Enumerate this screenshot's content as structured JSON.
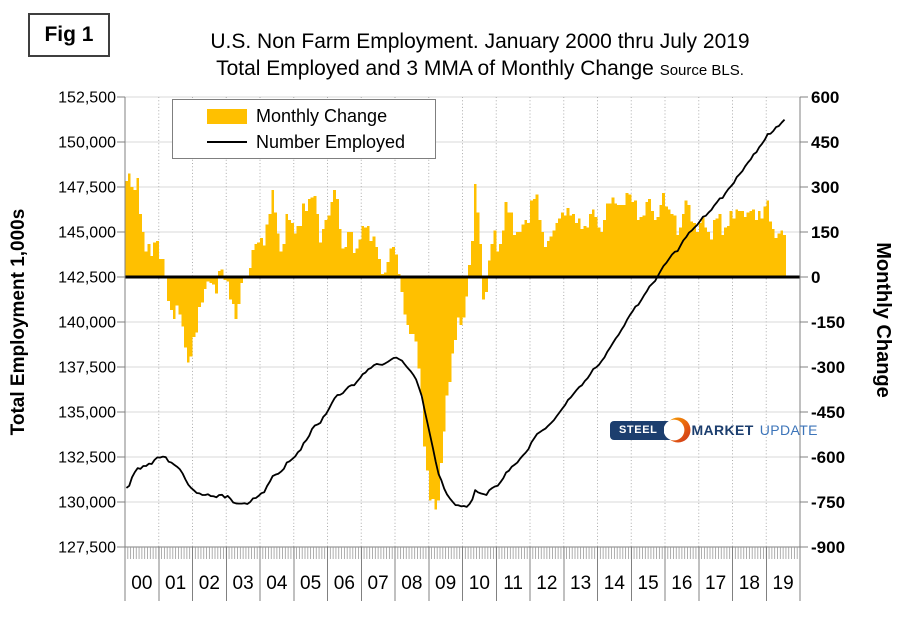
{
  "fig_label": "Fig 1",
  "title_line1": "U.S. Non Farm Employment. January 2000 thru July 2019",
  "title_line2": "Total Employed and 3 MMA of Monthly Change",
  "title_source": "Source BLS.",
  "legend": {
    "monthly_change": "Monthly Change",
    "number_employed": "Number Employed"
  },
  "left_axis": {
    "title": "Total Employment 1,000s",
    "min": 127500,
    "max": 152500,
    "step": 2500,
    "labels": [
      "152,500",
      "150,000",
      "147,500",
      "145,000",
      "142,500",
      "140,000",
      "137,500",
      "135,000",
      "132,500",
      "130,000",
      "127,500"
    ]
  },
  "right_axis": {
    "title": "Monthly Change",
    "min": -900,
    "max": 600,
    "step": 150,
    "labels": [
      "600",
      "450",
      "300",
      "150",
      "0",
      "-150",
      "-300",
      "-450",
      "-600",
      "-750",
      "-900"
    ]
  },
  "x_axis": {
    "year_labels": [
      "00",
      "01",
      "02",
      "03",
      "04",
      "05",
      "06",
      "07",
      "08",
      "09",
      "10",
      "11",
      "12",
      "13",
      "14",
      "15",
      "16",
      "17",
      "18",
      "19"
    ]
  },
  "logo": {
    "steel": "STEEL",
    "market": "MARKET",
    "update": "UPDATE"
  },
  "colors": {
    "bar": "#FFC000",
    "line": "#000000",
    "grid": "#D9D9D9",
    "grid_dotted": "#ADADAD",
    "axis": "#808080",
    "zero_line": "#000000",
    "logo_navy": "#1c3e6e",
    "logo_blue": "#3c74b9",
    "logo_orange_dark": "#D94E1F",
    "logo_orange_light": "#F7A800"
  },
  "chart_data": {
    "type": "combo",
    "title": "U.S. Non Farm Employment. January 2000 thru July 2019 — Total Employed and 3 MMA of Monthly Change",
    "x_start": "2000-01",
    "x_end": "2019-07",
    "data_months": 235,
    "axis_total_months": 240,
    "left_axis_range": [
      127500,
      152500
    ],
    "right_axis_range": [
      -900,
      600
    ],
    "grid": true,
    "legend_position": "top-left-inside",
    "series": [
      {
        "name": "Monthly Change",
        "type": "bar",
        "yaxis": "right",
        "color": "#FFC000",
        "values": [
          320,
          345,
          300,
          290,
          330,
          210,
          150,
          85,
          110,
          70,
          115,
          120,
          60,
          60,
          5,
          -80,
          -110,
          -140,
          -95,
          -125,
          -165,
          -235,
          -285,
          -265,
          -200,
          -185,
          -100,
          -85,
          -40,
          -15,
          -20,
          -25,
          -55,
          20,
          25,
          -10,
          -15,
          -75,
          -90,
          -140,
          -90,
          -20,
          5,
          -5,
          30,
          90,
          110,
          115,
          130,
          105,
          175,
          210,
          290,
          215,
          145,
          85,
          110,
          210,
          190,
          180,
          145,
          170,
          170,
          245,
          220,
          260,
          265,
          270,
          210,
          115,
          160,
          190,
          205,
          250,
          290,
          260,
          160,
          95,
          100,
          150,
          150,
          80,
          95,
          125,
          170,
          165,
          170,
          120,
          135,
          100,
          60,
          10,
          15,
          50,
          95,
          100,
          75,
          10,
          -50,
          -125,
          -160,
          -190,
          -190,
          -215,
          -305,
          -395,
          -565,
          -645,
          -745,
          -740,
          -775,
          -745,
          -620,
          -515,
          -395,
          -350,
          -255,
          -210,
          -135,
          -160,
          -135,
          -65,
          40,
          120,
          310,
          215,
          110,
          -75,
          -50,
          55,
          110,
          155,
          85,
          110,
          155,
          250,
          215,
          215,
          140,
          150,
          150,
          175,
          190,
          180,
          255,
          260,
          275,
          190,
          150,
          100,
          120,
          135,
          155,
          180,
          195,
          215,
          205,
          230,
          205,
          210,
          180,
          195,
          160,
          170,
          165,
          210,
          225,
          200,
          165,
          150,
          190,
          245,
          245,
          265,
          245,
          240,
          240,
          240,
          280,
          275,
          250,
          255,
          190,
          200,
          205,
          250,
          260,
          220,
          190,
          200,
          240,
          280,
          235,
          225,
          210,
          205,
          140,
          165,
          210,
          255,
          240,
          185,
          180,
          150,
          180,
          200,
          165,
          150,
          125,
          190,
          195,
          210,
          140,
          165,
          170,
          220,
          195,
          225,
          220,
          220,
          200,
          215,
          220,
          225,
          190,
          220,
          195,
          235,
          255,
          185,
          160,
          130,
          145,
          155,
          140
        ]
      },
      {
        "name": "Number Employed",
        "type": "line",
        "yaxis": "left",
        "color": "#000000",
        "values": [
          130780,
          130900,
          131370,
          131660,
          131880,
          131840,
          132000,
          132000,
          132130,
          132110,
          132340,
          132480,
          132470,
          132520,
          132490,
          132240,
          132190,
          132070,
          131960,
          131820,
          131580,
          131250,
          130960,
          130780,
          130650,
          130500,
          130480,
          130390,
          130390,
          130430,
          130330,
          130320,
          130260,
          130390,
          130400,
          130240,
          130340,
          130180,
          129970,
          129920,
          129910,
          129910,
          129930,
          129890,
          130000,
          130200,
          130220,
          130340,
          130490,
          130540,
          130880,
          131130,
          131440,
          131520,
          131570,
          131690,
          131850,
          132190,
          132260,
          132390,
          132530,
          132770,
          132900,
          133270,
          133440,
          133680,
          134060,
          134250,
          134310,
          134400,
          134730,
          134890,
          135170,
          135480,
          135760,
          135940,
          135960,
          136050,
          136240,
          136410,
          136490,
          136490,
          136690,
          136870,
          137100,
          137190,
          137380,
          137450,
          137600,
          137670,
          137640,
          137620,
          137700,
          137790,
          137900,
          138000,
          138020,
          137930,
          137850,
          137640,
          137450,
          137280,
          137070,
          136810,
          136360,
          135890,
          135120,
          134420,
          133700,
          132980,
          132220,
          131550,
          131200,
          130740,
          130420,
          130200,
          130010,
          129830,
          129820,
          129760,
          129780,
          129730,
          129890,
          130140,
          130660,
          130540,
          130480,
          130440,
          130390,
          130650,
          130770,
          130860,
          130900,
          131100,
          131320,
          131640,
          131740,
          131960,
          132070,
          132190,
          132410,
          132590,
          132750,
          132950,
          133310,
          133540,
          133780,
          133880,
          133990,
          134080,
          134240,
          134390,
          134550,
          134770,
          134980,
          135190,
          135390,
          135670,
          135810,
          136010,
          136210,
          136390,
          136490,
          136720,
          136880,
          137120,
          137390,
          137480,
          137620,
          137840,
          138040,
          138350,
          138580,
          138840,
          139090,
          139290,
          139560,
          139800,
          140120,
          140380,
          140600,
          140860,
          140950,
          141200,
          141470,
          141700,
          141980,
          142130,
          142280,
          142570,
          142850,
          143120,
          143290,
          143520,
          143750,
          143900,
          143940,
          144240,
          144530,
          144710,
          144960,
          145080,
          145250,
          145400,
          145620,
          145850,
          145900,
          146080,
          146230,
          146470,
          146660,
          146870,
          146890,
          147160,
          147380,
          147550,
          147730,
          148050,
          148210,
          148380,
          148650,
          148860,
          149040,
          149320,
          149430,
          149710,
          149900,
          150130,
          150440,
          150460,
          150610,
          150830,
          150890,
          151080,
          151240
        ]
      }
    ]
  }
}
